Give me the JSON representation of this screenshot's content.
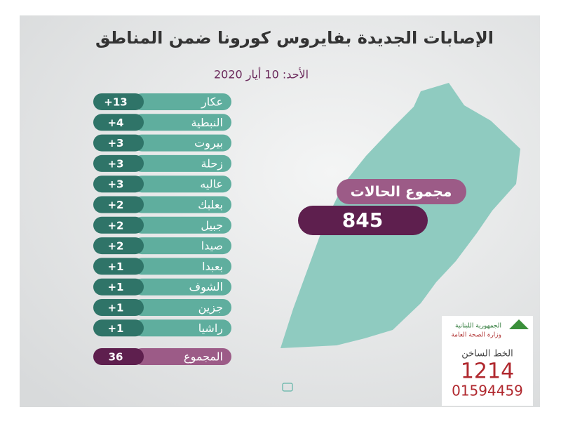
{
  "header": {
    "title": "الإصابات الجديدة بفايروس كورونا ضمن المناطق",
    "date": "الأحد: 10 أيار 2020"
  },
  "table": {
    "rows": [
      {
        "name": "عكار",
        "value": "+13"
      },
      {
        "name": "النبطية",
        "value": "+4"
      },
      {
        "name": "بيروت",
        "value": "+3"
      },
      {
        "name": "زحلة",
        "value": "+3"
      },
      {
        "name": "عاليه",
        "value": "+3"
      },
      {
        "name": "بعلبك",
        "value": "+2"
      },
      {
        "name": "جبيل",
        "value": "+2"
      },
      {
        "name": "صيدا",
        "value": "+2"
      },
      {
        "name": "بعبدا",
        "value": "+1"
      },
      {
        "name": "الشوف",
        "value": "+1"
      },
      {
        "name": "جزين",
        "value": "+1"
      },
      {
        "name": "راشيا",
        "value": "+1"
      }
    ],
    "total": {
      "name": "المجموع",
      "value": "36"
    }
  },
  "map": {
    "label": "مجموع الحالات",
    "value": "845"
  },
  "logo": {
    "line1": "الجمهورية اللبنانية",
    "line2": "وزارة الصحة العامة"
  },
  "hotline": {
    "label": "الخط الساخن",
    "number": "1214",
    "phone": "01594459"
  }
}
